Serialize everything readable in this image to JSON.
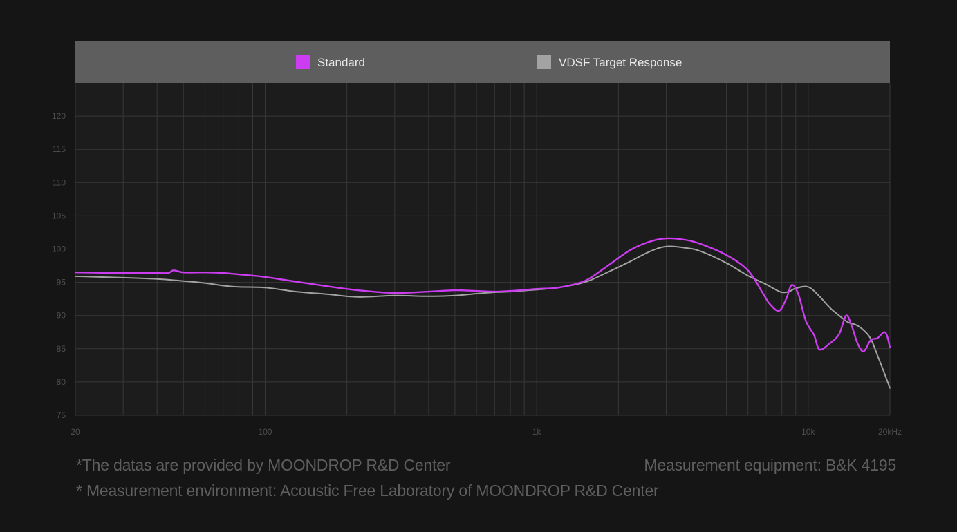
{
  "chart_data": {
    "type": "line",
    "title": "",
    "xlabel": "",
    "ylabel": "",
    "x_scale": "log",
    "xlim": [
      20,
      20000
    ],
    "ylim": [
      75,
      125
    ],
    "y_ticks": [
      75,
      80,
      85,
      90,
      95,
      100,
      105,
      110,
      115,
      120
    ],
    "y_tick_labels": [
      "75",
      "80",
      "85",
      "90",
      "95",
      "100",
      "105",
      "110",
      "115",
      "120"
    ],
    "x_ticks": [
      20,
      100,
      1000,
      10000,
      20000
    ],
    "x_tick_labels": [
      "20",
      "100",
      "1k",
      "10k",
      "20kHz"
    ],
    "grid": true,
    "legend_position": "top",
    "legend": [
      {
        "name": "Standard",
        "color": "#cc3cf0"
      },
      {
        "name": "VDSF Target Response",
        "color": "#a3a3a3"
      }
    ],
    "series": [
      {
        "name": "Standard",
        "color": "#cc3cf0",
        "x": [
          20,
          30,
          40,
          44,
          46,
          50,
          60,
          70,
          80,
          100,
          130,
          170,
          220,
          300,
          400,
          500,
          600,
          700,
          800,
          1000,
          1200,
          1500,
          1800,
          2200,
          2600,
          3000,
          3500,
          4000,
          5000,
          6000,
          6800,
          7200,
          7800,
          8300,
          8700,
          9200,
          9800,
          10500,
          11000,
          12000,
          13000,
          13800,
          14500,
          15200,
          16000,
          17000,
          18000,
          19000,
          19500,
          20000
        ],
        "y": [
          96.5,
          96.4,
          96.4,
          96.4,
          96.8,
          96.5,
          96.5,
          96.4,
          96.2,
          95.8,
          95.1,
          94.4,
          93.8,
          93.4,
          93.6,
          93.8,
          93.7,
          93.6,
          93.7,
          94.0,
          94.2,
          95.2,
          97.3,
          99.8,
          101.1,
          101.6,
          101.4,
          100.8,
          99.1,
          96.8,
          93.4,
          91.8,
          90.7,
          92.5,
          94.6,
          93.2,
          89.2,
          87.1,
          84.9,
          85.8,
          87.2,
          90.0,
          88.3,
          85.8,
          84.6,
          86.3,
          86.6,
          87.5,
          87.0,
          85.2
        ]
      },
      {
        "name": "VDSF Target Response",
        "color": "#a3a3a3",
        "x": [
          20,
          30,
          40,
          50,
          60,
          70,
          80,
          100,
          130,
          170,
          220,
          300,
          400,
          500,
          600,
          700,
          800,
          1000,
          1200,
          1500,
          1800,
          2200,
          2600,
          3000,
          3500,
          4000,
          5000,
          6000,
          7000,
          7500,
          8000,
          8500,
          9000,
          10000,
          11000,
          12000,
          13000,
          14000,
          15000,
          16000,
          17000,
          18000,
          19000,
          20000
        ],
        "y": [
          95.9,
          95.7,
          95.5,
          95.2,
          94.9,
          94.5,
          94.3,
          94.2,
          93.6,
          93.2,
          92.8,
          93.0,
          92.9,
          93.0,
          93.3,
          93.5,
          93.6,
          93.9,
          94.2,
          95.0,
          96.4,
          98.1,
          99.6,
          100.4,
          100.2,
          99.7,
          97.9,
          96.0,
          94.7,
          94.0,
          93.5,
          93.6,
          94.1,
          94.3,
          92.9,
          91.2,
          90.0,
          89.0,
          88.6,
          87.8,
          86.5,
          84.0,
          81.5,
          79.1
        ]
      }
    ]
  },
  "footnotes": {
    "data_source": "*The datas are provided by MOONDROP R&D Center",
    "equipment": "Measurement equipment: B&K 4195",
    "environment": "* Measurement environment: Acoustic Free Laboratory of MOONDROP R&D Center"
  },
  "colors": {
    "background": "#151515",
    "plot_background": "#1c1c1c",
    "legend_bar": "#5e5e5e",
    "grid": "#383838",
    "tick_text": "#4e4e4e"
  }
}
